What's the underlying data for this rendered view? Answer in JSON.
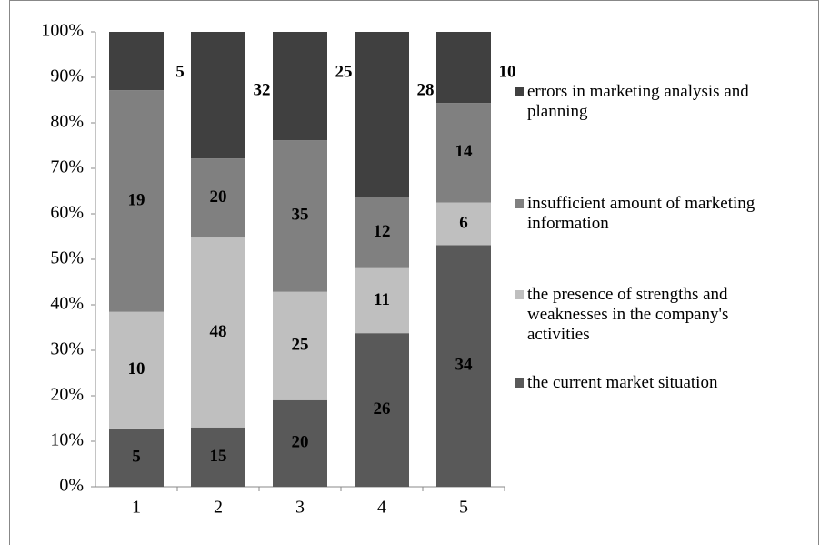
{
  "chart_data": {
    "type": "bar",
    "stacked": "percent",
    "categories": [
      "1",
      "2",
      "3",
      "4",
      "5"
    ],
    "series": [
      {
        "name": "the current market situation",
        "color": "#595959",
        "values": [
          5,
          15,
          20,
          26,
          34
        ]
      },
      {
        "name": "the presence of strengths and weaknesses in the company's activities",
        "color": "#bfbfbf",
        "values": [
          10,
          48,
          25,
          11,
          6
        ]
      },
      {
        "name": "insufficient amount of marketing information",
        "color": "#808080",
        "values": [
          19,
          20,
          35,
          12,
          14
        ]
      },
      {
        "name": "errors in marketing analysis and planning",
        "color": "#404040",
        "values": [
          5,
          32,
          25,
          28,
          10
        ]
      }
    ],
    "ylim": [
      0,
      100
    ],
    "yticks": [
      {
        "value": 0,
        "label": "0%"
      },
      {
        "value": 10,
        "label": "10%"
      },
      {
        "value": 20,
        "label": "20%"
      },
      {
        "value": 30,
        "label": "30%"
      },
      {
        "value": 40,
        "label": "40%"
      },
      {
        "value": 50,
        "label": "50%"
      },
      {
        "value": 60,
        "label": "60%"
      },
      {
        "value": 70,
        "label": "70%"
      },
      {
        "value": 80,
        "label": "80%"
      },
      {
        "value": 90,
        "label": "90%"
      },
      {
        "value": 100,
        "label": "100%"
      }
    ],
    "legend": "right"
  }
}
